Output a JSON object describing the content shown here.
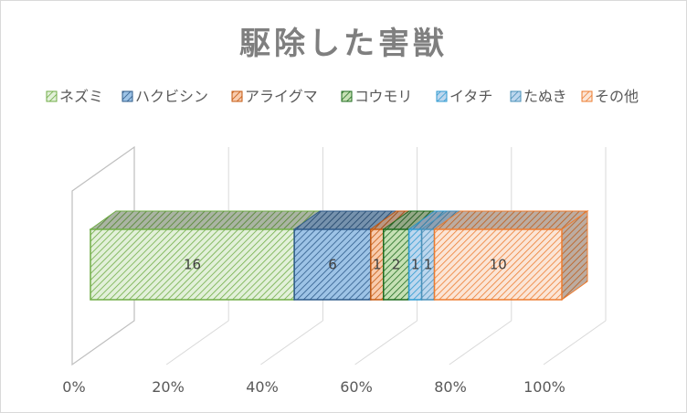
{
  "chart_data": {
    "type": "bar",
    "orientation": "horizontal",
    "stacked": "percent",
    "three_d": true,
    "title": "駆除した害獣",
    "xlabel": "",
    "ylabel": "",
    "xlim": [
      0,
      100
    ],
    "x_ticks": [
      "0%",
      "20%",
      "40%",
      "60%",
      "80%",
      "100%"
    ],
    "grid": true,
    "legend_position": "top",
    "series": [
      {
        "name": "ネズミ",
        "values": [
          16
        ],
        "color": "#70ad47",
        "fill": "#e2f0d9"
      },
      {
        "name": "ハクビシン",
        "values": [
          6
        ],
        "color": "#2e5b8a",
        "fill": "#9dc3e6"
      },
      {
        "name": "アライグマ",
        "values": [
          1
        ],
        "color": "#c55a11",
        "fill": "#f8cbad"
      },
      {
        "name": "コウモリ",
        "values": [
          2
        ],
        "color": "#1e6b1e",
        "fill": "#c5e0b4"
      },
      {
        "name": "イタチ",
        "values": [
          1
        ],
        "color": "#2e9ad0",
        "fill": "#bdd7ee"
      },
      {
        "name": "たぬき",
        "values": [
          1
        ],
        "color": "#4a90b8",
        "fill": "#bdd7ee"
      },
      {
        "name": "その他",
        "values": [
          10
        ],
        "color": "#ed7d31",
        "fill": "#fbe5d6"
      }
    ]
  }
}
